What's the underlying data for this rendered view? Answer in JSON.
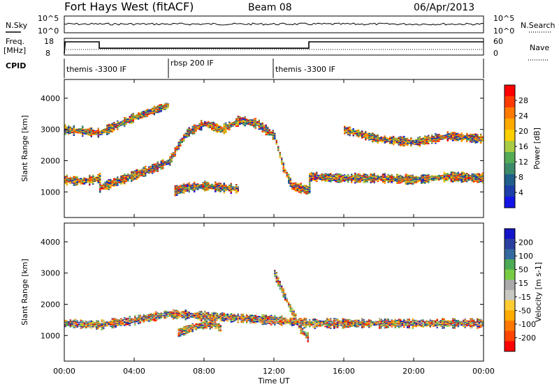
{
  "header": {
    "station": "Fort Hays West (fitACF)",
    "beam": "Beam 08",
    "date": "06/Apr/2013"
  },
  "noise_panel": {
    "left_label": "N.Sky",
    "left_ticks": [
      "10^5",
      "10^0"
    ],
    "right_label": "N.Search",
    "right_ticks": [
      "10^5",
      "10^0"
    ]
  },
  "freq_panel": {
    "left_label_line1": "Freq.",
    "left_label_line2": "[MHz]",
    "left_ticks": [
      "18",
      "8"
    ],
    "right_label": "Nave",
    "right_ticks": [
      "60",
      "0"
    ]
  },
  "cpid": {
    "label": "CPID",
    "segments": [
      {
        "name": "themis -3300 IF",
        "start_hour": 0,
        "end_hour": 6
      },
      {
        "name": "rbsp 200 IF",
        "start_hour": 6,
        "end_hour": 12
      },
      {
        "name": "themis -3300 IF",
        "start_hour": 12,
        "end_hour": 24
      }
    ]
  },
  "x_axis": {
    "label": "Time UT",
    "ticks": [
      "00:00",
      "04:00",
      "08:00",
      "12:00",
      "16:00",
      "20:00",
      "00:00"
    ]
  },
  "chart_data": [
    {
      "type": "line",
      "name": "Frequency",
      "unit": "MHz",
      "ylim": [
        8,
        18
      ],
      "x_hours": [
        0,
        0.05,
        2.0,
        2.0,
        14.0,
        14.0,
        24
      ],
      "values": [
        8.5,
        16.2,
        16.2,
        12.0,
        12.0,
        16.2,
        16.2
      ]
    },
    {
      "type": "heatmap",
      "name": "Power",
      "ylabel": "Slant Range [km]",
      "yticks": [
        1000,
        2000,
        3000,
        4000
      ],
      "ylim": [
        180,
        4600
      ],
      "xlim_hours": [
        0,
        24
      ],
      "colorbar": {
        "label": "Power [dB]",
        "ticks": [
          "28",
          "24",
          "20",
          "16",
          "12",
          "8",
          "4"
        ],
        "colors": [
          "#ff0000",
          "#ff3a00",
          "#ff7a00",
          "#ffaa00",
          "#ffd000",
          "#aacc44",
          "#55aa55",
          "#3d8a6a",
          "#1f5f8a",
          "#1c3fa8",
          "#1414e6"
        ]
      },
      "bands": [
        {
          "name": "main-echo",
          "points": [
            [
              0,
              1400
            ],
            [
              1,
              1350
            ],
            [
              2,
              1450
            ],
            [
              2,
              1150
            ],
            [
              3,
              1350
            ],
            [
              4,
              1550
            ],
            [
              5,
              1750
            ],
            [
              6,
              2000
            ],
            [
              6.5,
              2500
            ],
            [
              7,
              2900
            ],
            [
              8,
              3200
            ],
            [
              9,
              3000
            ],
            [
              10,
              3300
            ],
            [
              11,
              3200
            ],
            [
              12,
              2800
            ],
            [
              12.5,
              1800
            ],
            [
              13,
              1200
            ],
            [
              14,
              1050
            ],
            [
              14,
              1500
            ],
            [
              16,
              1450
            ],
            [
              18,
              1450
            ],
            [
              20,
              1400
            ],
            [
              22,
              1500
            ],
            [
              24,
              1450
            ]
          ]
        },
        {
          "name": "low-patch",
          "points": [
            [
              6.3,
              1050
            ],
            [
              7,
              1150
            ],
            [
              8,
              1200
            ],
            [
              9,
              1150
            ],
            [
              10,
              1100
            ]
          ]
        },
        {
          "name": "upper-band",
          "points": [
            [
              0,
              3000
            ],
            [
              2,
              2900
            ],
            [
              4,
              3400
            ],
            [
              6,
              3800
            ]
          ]
        },
        {
          "name": "trailing-band",
          "points": [
            [
              16,
              3000
            ],
            [
              18,
              2700
            ],
            [
              20,
              2600
            ],
            [
              22,
              2800
            ],
            [
              24,
              2700
            ]
          ]
        }
      ]
    },
    {
      "type": "heatmap",
      "name": "Velocity",
      "ylabel": "Slant Range [km]",
      "yticks": [
        1000,
        2000,
        3000,
        4000
      ],
      "ylim": [
        180,
        4600
      ],
      "xlim_hours": [
        0,
        24
      ],
      "colorbar": {
        "label": "Velocity [m s-1]",
        "ticks": [
          "200",
          "100",
          "50",
          "15",
          "-15",
          "-50",
          "-100",
          "-200"
        ],
        "colors": [
          "#1414c8",
          "#2a3fa0",
          "#356aa0",
          "#4caa55",
          "#77cc44",
          "#aaaaaa",
          "#c8c8c0",
          "#ffcc33",
          "#ffaa00",
          "#ff7700",
          "#ff4400",
          "#ff0000"
        ]
      },
      "bands": [
        {
          "name": "ground-scatter",
          "points": [
            [
              0,
              1400
            ],
            [
              2,
              1350
            ],
            [
              4,
              1500
            ],
            [
              6,
              1700
            ],
            [
              12,
              1500
            ],
            [
              14,
              1400
            ],
            [
              18,
              1400
            ],
            [
              24,
              1400
            ]
          ]
        },
        {
          "name": "orange-patch",
          "points": [
            [
              6.5,
              1100
            ],
            [
              7.5,
              1300
            ],
            [
              8.5,
              1400
            ],
            [
              9,
              1200
            ]
          ]
        },
        {
          "name": "green-streak",
          "points": [
            [
              12,
              3000
            ],
            [
              12.8,
              2000
            ],
            [
              13.5,
              1200
            ],
            [
              14,
              900
            ]
          ]
        }
      ]
    }
  ]
}
